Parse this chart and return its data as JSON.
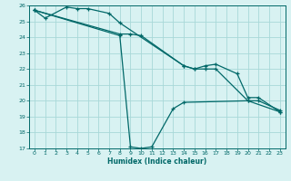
{
  "xlabel": "Humidex (Indice chaleur)",
  "bg_color": "#d8f2f2",
  "grid_color": "#a8d8d8",
  "line_color": "#006868",
  "tick_color": "#006868",
  "xlim": [
    -0.5,
    23.5
  ],
  "ylim": [
    17,
    26
  ],
  "xticks": [
    0,
    1,
    2,
    3,
    4,
    5,
    6,
    7,
    8,
    9,
    10,
    11,
    12,
    13,
    14,
    15,
    16,
    17,
    18,
    19,
    20,
    21,
    22,
    23
  ],
  "yticks": [
    17,
    18,
    19,
    20,
    21,
    22,
    23,
    24,
    25,
    26
  ],
  "series": [
    {
      "x": [
        0,
        1,
        3,
        4,
        5,
        7,
        8,
        14,
        15,
        16,
        17,
        19,
        20,
        21,
        23
      ],
      "y": [
        25.7,
        25.2,
        25.9,
        25.8,
        25.8,
        25.5,
        24.9,
        22.2,
        22.0,
        22.2,
        22.3,
        21.7,
        20.2,
        20.2,
        19.3
      ]
    },
    {
      "x": [
        0,
        8,
        9,
        10,
        14,
        15,
        16,
        17,
        20,
        21,
        23
      ],
      "y": [
        25.7,
        24.2,
        24.2,
        24.1,
        22.2,
        22.0,
        22.0,
        22.0,
        20.0,
        20.0,
        19.4
      ]
    },
    {
      "x": [
        0,
        8,
        9,
        10,
        11,
        13,
        14,
        20,
        23
      ],
      "y": [
        25.7,
        24.1,
        17.1,
        17.0,
        17.1,
        19.5,
        19.9,
        20.0,
        19.3
      ]
    }
  ]
}
